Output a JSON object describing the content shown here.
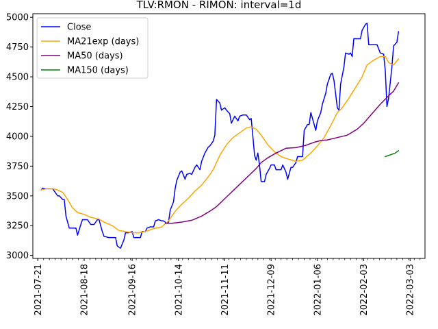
{
  "chart_data": {
    "type": "line",
    "title": "TLV:RMON - RIMON: interval=1d",
    "xlabel": "",
    "ylabel": "",
    "ylim": [
      2975,
      5030
    ],
    "xlim": [
      "2021-07-18",
      "2022-03-12"
    ],
    "grid": false,
    "legend_position": "top-left",
    "y_ticks": [
      3000,
      3250,
      3500,
      3750,
      4000,
      4250,
      4500,
      4750,
      5000
    ],
    "x_ticks": [
      "2021-07-21",
      "2021-08-18",
      "2021-09-16",
      "2021-10-14",
      "2021-11-11",
      "2021-12-09",
      "2022-01-06",
      "2022-02-03",
      "2022-03-03"
    ],
    "series": [
      {
        "name": "Close",
        "color": "#0000ff",
        "points": [
          [
            "2021-07-23",
            3550
          ],
          [
            "2021-07-24",
            3565
          ],
          [
            "2021-07-26",
            3560
          ],
          [
            "2021-07-28",
            3560
          ],
          [
            "2021-07-30",
            3560
          ],
          [
            "2021-08-02",
            3500
          ],
          [
            "2021-08-03",
            3500
          ],
          [
            "2021-08-05",
            3470
          ],
          [
            "2021-08-06",
            3470
          ],
          [
            "2021-08-07",
            3330
          ],
          [
            "2021-08-09",
            3230
          ],
          [
            "2021-08-11",
            3230
          ],
          [
            "2021-08-13",
            3230
          ],
          [
            "2021-08-14",
            3170
          ],
          [
            "2021-08-16",
            3260
          ],
          [
            "2021-08-17",
            3300
          ],
          [
            "2021-08-19",
            3300
          ],
          [
            "2021-08-20",
            3300
          ],
          [
            "2021-08-22",
            3260
          ],
          [
            "2021-08-24",
            3260
          ],
          [
            "2021-08-26",
            3300
          ],
          [
            "2021-08-27",
            3300
          ],
          [
            "2021-08-29",
            3200
          ],
          [
            "2021-08-30",
            3160
          ],
          [
            "2021-09-02",
            3150
          ],
          [
            "2021-09-04",
            3150
          ],
          [
            "2021-09-06",
            3150
          ],
          [
            "2021-09-07",
            3080
          ],
          [
            "2021-09-09",
            3060
          ],
          [
            "2021-09-11",
            3130
          ],
          [
            "2021-09-12",
            3190
          ],
          [
            "2021-09-14",
            3190
          ],
          [
            "2021-09-16",
            3200
          ],
          [
            "2021-09-17",
            3150
          ],
          [
            "2021-09-19",
            3150
          ],
          [
            "2021-09-21",
            3150
          ],
          [
            "2021-09-22",
            3200
          ],
          [
            "2021-09-24",
            3200
          ],
          [
            "2021-09-25",
            3230
          ],
          [
            "2021-09-27",
            3240
          ],
          [
            "2021-09-29",
            3240
          ],
          [
            "2021-09-30",
            3290
          ],
          [
            "2021-10-02",
            3300
          ],
          [
            "2021-10-04",
            3290
          ],
          [
            "2021-10-05",
            3290
          ],
          [
            "2021-10-07",
            3270
          ],
          [
            "2021-10-08",
            3280
          ],
          [
            "2021-10-09",
            3380
          ],
          [
            "2021-10-11",
            3450
          ],
          [
            "2021-10-12",
            3560
          ],
          [
            "2021-10-13",
            3630
          ],
          [
            "2021-10-15",
            3700
          ],
          [
            "2021-10-16",
            3710
          ],
          [
            "2021-10-18",
            3640
          ],
          [
            "2021-10-19",
            3680
          ],
          [
            "2021-10-21",
            3690
          ],
          [
            "2021-10-22",
            3680
          ],
          [
            "2021-10-24",
            3740
          ],
          [
            "2021-10-25",
            3760
          ],
          [
            "2021-10-27",
            3720
          ],
          [
            "2021-10-28",
            3790
          ],
          [
            "2021-10-30",
            3860
          ],
          [
            "2021-11-01",
            3910
          ],
          [
            "2021-11-02",
            3920
          ],
          [
            "2021-11-04",
            3960
          ],
          [
            "2021-11-05",
            4010
          ],
          [
            "2021-11-06",
            4310
          ],
          [
            "2021-11-08",
            4280
          ],
          [
            "2021-11-09",
            4220
          ],
          [
            "2021-11-11",
            4240
          ],
          [
            "2021-11-12",
            4220
          ],
          [
            "2021-11-14",
            4190
          ],
          [
            "2021-11-15",
            4110
          ],
          [
            "2021-11-16",
            4140
          ],
          [
            "2021-11-17",
            4170
          ],
          [
            "2021-11-19",
            4130
          ],
          [
            "2021-11-20",
            4170
          ],
          [
            "2021-11-22",
            4180
          ],
          [
            "2021-11-24",
            4180
          ],
          [
            "2021-11-26",
            4140
          ],
          [
            "2021-11-27",
            4150
          ],
          [
            "2021-11-29",
            3840
          ],
          [
            "2021-11-30",
            3800
          ],
          [
            "2021-12-01",
            3860
          ],
          [
            "2021-12-02",
            3760
          ],
          [
            "2021-12-03",
            3620
          ],
          [
            "2021-12-05",
            3620
          ],
          [
            "2021-12-06",
            3680
          ],
          [
            "2021-12-08",
            3730
          ],
          [
            "2021-12-09",
            3760
          ],
          [
            "2021-12-11",
            3760
          ],
          [
            "2021-12-12",
            3720
          ],
          [
            "2021-12-14",
            3720
          ],
          [
            "2021-12-15",
            3720
          ],
          [
            "2021-12-16",
            3760
          ],
          [
            "2021-12-18",
            3700
          ],
          [
            "2021-12-19",
            3640
          ],
          [
            "2021-12-21",
            3740
          ],
          [
            "2021-12-22",
            3740
          ],
          [
            "2021-12-24",
            3780
          ],
          [
            "2021-12-25",
            3830
          ],
          [
            "2021-12-27",
            3830
          ],
          [
            "2021-12-28",
            3830
          ],
          [
            "2021-12-29",
            4050
          ],
          [
            "2021-12-31",
            4100
          ],
          [
            "2022-01-01",
            4100
          ],
          [
            "2022-01-02",
            4200
          ],
          [
            "2022-01-04",
            4100
          ],
          [
            "2022-01-05",
            4050
          ],
          [
            "2022-01-06",
            4130
          ],
          [
            "2022-01-08",
            4200
          ],
          [
            "2022-01-09",
            4270
          ],
          [
            "2022-01-11",
            4360
          ],
          [
            "2022-01-12",
            4440
          ],
          [
            "2022-01-14",
            4520
          ],
          [
            "2022-01-15",
            4530
          ],
          [
            "2022-01-16",
            4470
          ],
          [
            "2022-01-18",
            4240
          ],
          [
            "2022-01-19",
            4220
          ],
          [
            "2022-01-20",
            4440
          ],
          [
            "2022-01-22",
            4580
          ],
          [
            "2022-01-23",
            4700
          ],
          [
            "2022-01-25",
            4690
          ],
          [
            "2022-01-26",
            4700
          ],
          [
            "2022-01-27",
            4670
          ],
          [
            "2022-01-28",
            4820
          ],
          [
            "2022-01-30",
            4820
          ],
          [
            "2022-02-01",
            4820
          ],
          [
            "2022-02-02",
            4890
          ],
          [
            "2022-02-04",
            4940
          ],
          [
            "2022-02-05",
            4950
          ],
          [
            "2022-02-06",
            4770
          ],
          [
            "2022-02-08",
            4770
          ],
          [
            "2022-02-10",
            4770
          ],
          [
            "2022-02-11",
            4770
          ],
          [
            "2022-02-13",
            4700
          ],
          [
            "2022-02-15",
            4690
          ],
          [
            "2022-02-16",
            4550
          ],
          [
            "2022-02-17",
            4250
          ],
          [
            "2022-02-18",
            4320
          ],
          [
            "2022-02-20",
            4580
          ],
          [
            "2022-02-21",
            4760
          ],
          [
            "2022-02-23",
            4790
          ],
          [
            "2022-02-24",
            4880
          ]
        ]
      },
      {
        "name": "MA21exp (days)",
        "color": "#ffa500",
        "points": [
          [
            "2021-07-23",
            3550
          ],
          [
            "2021-07-26",
            3560
          ],
          [
            "2021-07-30",
            3560
          ],
          [
            "2021-08-02",
            3550
          ],
          [
            "2021-08-05",
            3530
          ],
          [
            "2021-08-08",
            3470
          ],
          [
            "2021-08-11",
            3400
          ],
          [
            "2021-08-14",
            3360
          ],
          [
            "2021-08-18",
            3345
          ],
          [
            "2021-08-22",
            3320
          ],
          [
            "2021-08-27",
            3305
          ],
          [
            "2021-08-30",
            3280
          ],
          [
            "2021-09-04",
            3250
          ],
          [
            "2021-09-08",
            3210
          ],
          [
            "2021-09-12",
            3200
          ],
          [
            "2021-09-16",
            3190
          ],
          [
            "2021-09-20",
            3190
          ],
          [
            "2021-09-25",
            3205
          ],
          [
            "2021-09-29",
            3225
          ],
          [
            "2021-10-04",
            3240
          ],
          [
            "2021-10-08",
            3290
          ],
          [
            "2021-10-12",
            3370
          ],
          [
            "2021-10-16",
            3430
          ],
          [
            "2021-10-20",
            3480
          ],
          [
            "2021-10-24",
            3540
          ],
          [
            "2021-10-28",
            3590
          ],
          [
            "2021-11-01",
            3660
          ],
          [
            "2021-11-04",
            3720
          ],
          [
            "2021-11-08",
            3840
          ],
          [
            "2021-11-12",
            3930
          ],
          [
            "2021-11-16",
            3990
          ],
          [
            "2021-11-20",
            4030
          ],
          [
            "2021-11-24",
            4070
          ],
          [
            "2021-11-27",
            4080
          ],
          [
            "2021-11-30",
            4060
          ],
          [
            "2021-12-03",
            4010
          ],
          [
            "2021-12-07",
            3930
          ],
          [
            "2021-12-11",
            3870
          ],
          [
            "2021-12-15",
            3830
          ],
          [
            "2021-12-19",
            3810
          ],
          [
            "2021-12-24",
            3790
          ],
          [
            "2021-12-28",
            3800
          ],
          [
            "2022-01-02",
            3860
          ],
          [
            "2022-01-06",
            3920
          ],
          [
            "2022-01-10",
            3990
          ],
          [
            "2022-01-14",
            4090
          ],
          [
            "2022-01-18",
            4200
          ],
          [
            "2022-01-21",
            4240
          ],
          [
            "2022-01-25",
            4320
          ],
          [
            "2022-01-29",
            4410
          ],
          [
            "2022-02-02",
            4500
          ],
          [
            "2022-02-05",
            4600
          ],
          [
            "2022-02-09",
            4640
          ],
          [
            "2022-02-13",
            4670
          ],
          [
            "2022-02-16",
            4670
          ],
          [
            "2022-02-18",
            4620
          ],
          [
            "2022-02-21",
            4600
          ],
          [
            "2022-02-24",
            4650
          ]
        ]
      },
      {
        "name": "MA50 (days)",
        "color": "#800080",
        "points": [
          [
            "2021-10-06",
            3270
          ],
          [
            "2021-10-10",
            3270
          ],
          [
            "2021-10-16",
            3280
          ],
          [
            "2021-10-22",
            3295
          ],
          [
            "2021-10-28",
            3330
          ],
          [
            "2021-11-03",
            3380
          ],
          [
            "2021-11-06",
            3410
          ],
          [
            "2021-11-12",
            3490
          ],
          [
            "2021-11-18",
            3570
          ],
          [
            "2021-11-24",
            3650
          ],
          [
            "2021-11-30",
            3730
          ],
          [
            "2021-12-03",
            3780
          ],
          [
            "2021-12-07",
            3820
          ],
          [
            "2021-12-12",
            3860
          ],
          [
            "2021-12-18",
            3900
          ],
          [
            "2021-12-24",
            3905
          ],
          [
            "2021-12-30",
            3925
          ],
          [
            "2022-01-04",
            3950
          ],
          [
            "2022-01-08",
            3965
          ],
          [
            "2022-01-12",
            3970
          ],
          [
            "2022-01-18",
            3990
          ],
          [
            "2022-01-24",
            4010
          ],
          [
            "2022-01-30",
            4060
          ],
          [
            "2022-02-03",
            4110
          ],
          [
            "2022-02-08",
            4190
          ],
          [
            "2022-02-13",
            4270
          ],
          [
            "2022-02-18",
            4340
          ],
          [
            "2022-02-21",
            4380
          ],
          [
            "2022-02-24",
            4450
          ]
        ]
      },
      {
        "name": "MA150 (days)",
        "color": "#008000",
        "points": [
          [
            "2022-02-16",
            3830
          ],
          [
            "2022-02-19",
            3845
          ],
          [
            "2022-02-22",
            3860
          ],
          [
            "2022-02-24",
            3880
          ]
        ]
      }
    ]
  }
}
